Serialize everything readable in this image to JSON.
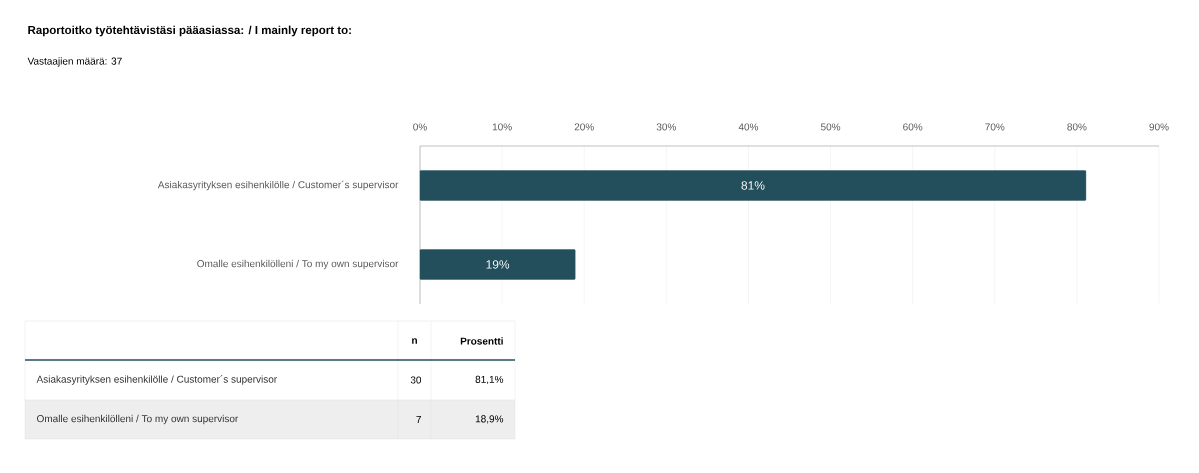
{
  "chart_data": {
    "type": "bar",
    "orientation": "horizontal",
    "title": "Raportoitko työtehtävistäsi pääasiassa: / I mainly report to:",
    "subtitle": "Vastaajien määrä: 37",
    "categories": [
      "Asiakasyrityksen esihenkilölle / Customer´s supervisor",
      "Omalle esihenkilölleni / To my own supervisor"
    ],
    "values": [
      81.1,
      18.9
    ],
    "value_labels": [
      "81%",
      "19%"
    ],
    "color": "#234e5c",
    "xlim": [
      0,
      90
    ],
    "xticks": [
      {
        "value": 0,
        "label": "0%"
      },
      {
        "value": 10,
        "label": "10%"
      },
      {
        "value": 20,
        "label": "20%"
      },
      {
        "value": 30,
        "label": "30%"
      },
      {
        "value": 40,
        "label": "40%"
      },
      {
        "value": 50,
        "label": "50%"
      },
      {
        "value": 60,
        "label": "60%"
      },
      {
        "value": 70,
        "label": "70%"
      },
      {
        "value": 80,
        "label": "80%"
      },
      {
        "value": 90,
        "label": "90%"
      }
    ],
    "grid": "x",
    "annotations": [
      "n",
      "Prosentti",
      "30",
      "7",
      "81,1%",
      "18,9%"
    ]
  }
}
